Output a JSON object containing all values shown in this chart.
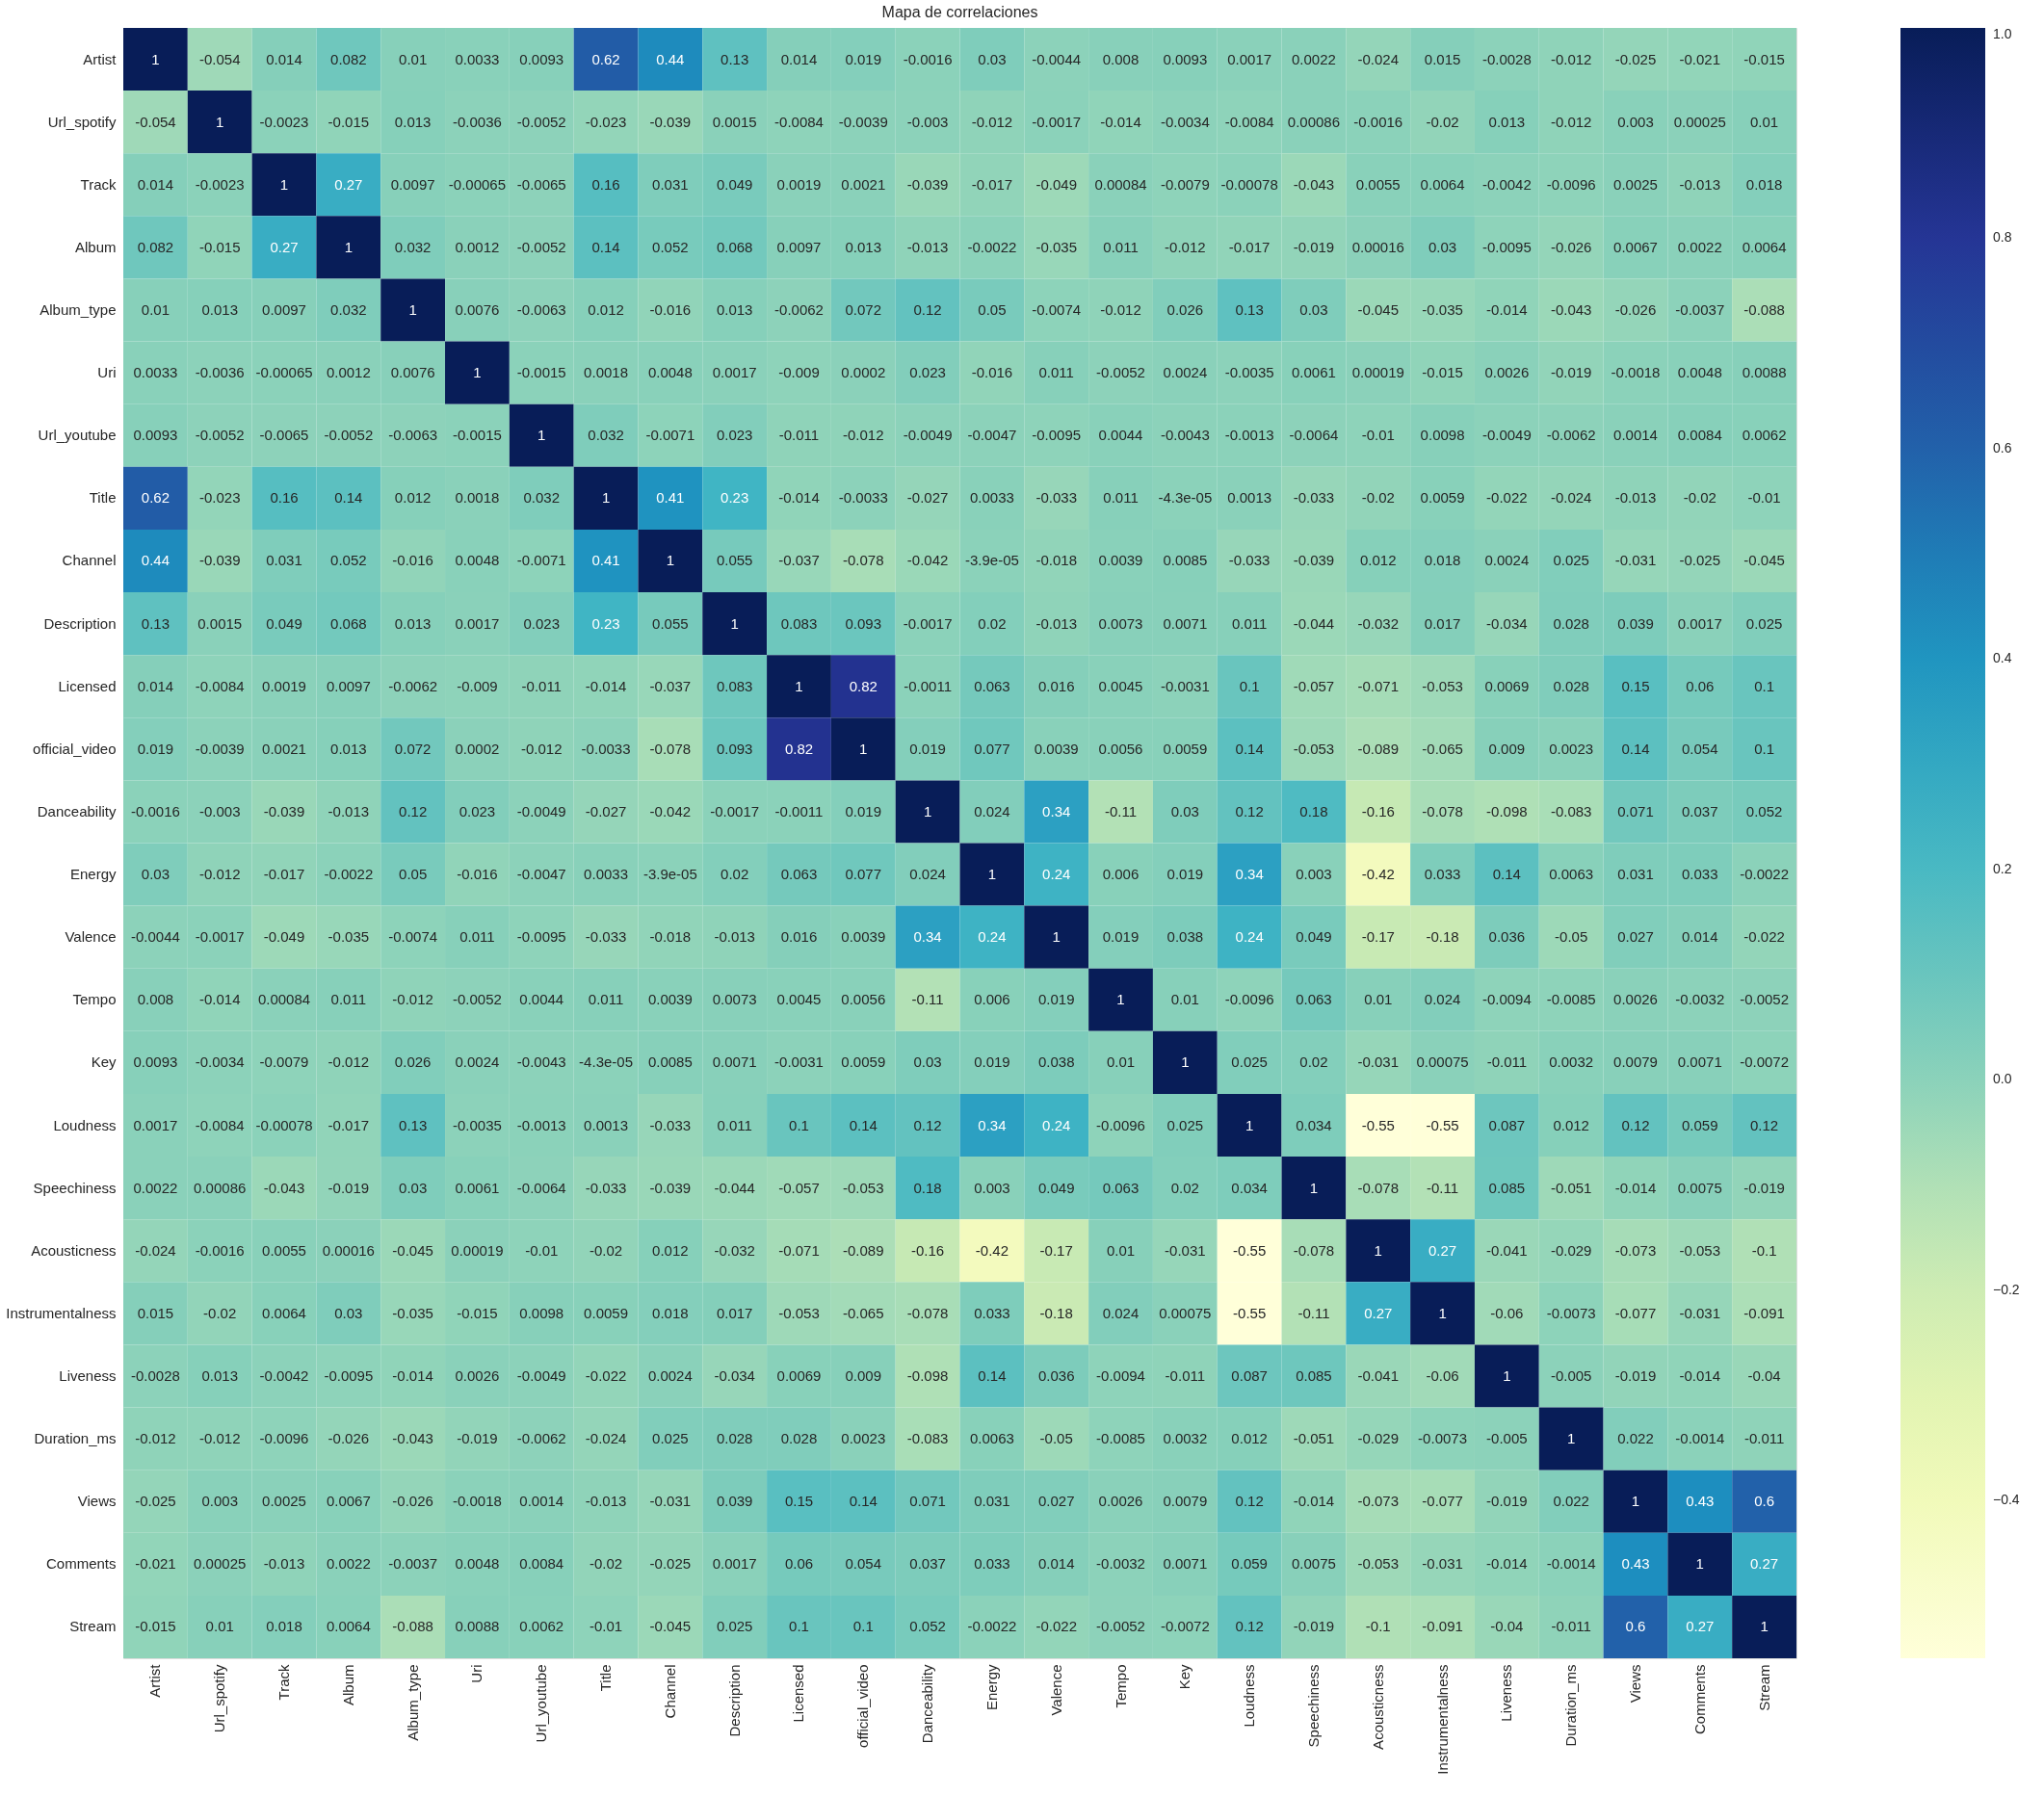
{
  "chart_data": {
    "type": "heatmap",
    "title": "Mapa de correlaciones",
    "categories": [
      "Artist",
      "Url_spotify",
      "Track",
      "Album",
      "Album_type",
      "Uri",
      "Url_youtube",
      "Title",
      "Channel",
      "Description",
      "Licensed",
      "official_video",
      "Danceability",
      "Energy",
      "Valence",
      "Tempo",
      "Key",
      "Loudness",
      "Speechiness",
      "Acousticness",
      "Instrumentalness",
      "Liveness",
      "Duration_ms",
      "Views",
      "Comments",
      "Stream"
    ],
    "y_categories": [
      "Artist",
      "Url_spotify",
      "Track",
      "Album",
      "Album_type",
      "Uri",
      "Url_youtube",
      "Title",
      "Channel",
      "Description",
      "Licensed",
      "official_video",
      "Danceability",
      "Energy",
      "Valence",
      "Tempo",
      "Key",
      "Loudness",
      "Speechiness",
      "Acousticness",
      "Instrumentalness",
      "Liveness",
      "Duration_ms",
      "Views",
      "Comments",
      "Stream"
    ],
    "cells": [
      [
        1,
        -0.054,
        0.014,
        0.082,
        0.01,
        0.0033,
        0.0093,
        0.62,
        0.44,
        0.13,
        0.014,
        0.019,
        -0.0016,
        0.03,
        -0.0044,
        0.008,
        0.0093,
        0.0017,
        0.0022,
        -0.024,
        0.015,
        -0.0028,
        -0.012,
        -0.025,
        -0.021,
        -0.015
      ],
      [
        -0.054,
        1,
        -0.0023,
        -0.015,
        0.013,
        -0.0036,
        -0.0052,
        -0.023,
        -0.039,
        0.0015,
        -0.0084,
        -0.0039,
        -0.003,
        -0.012,
        -0.0017,
        -0.014,
        -0.0034,
        -0.0084,
        0.00086,
        -0.0016,
        -0.02,
        0.013,
        -0.012,
        0.003,
        0.00025,
        0.01
      ],
      [
        0.014,
        -0.0023,
        1,
        0.27,
        0.0097,
        -0.00065,
        -0.0065,
        0.16,
        0.031,
        0.049,
        0.0019,
        0.0021,
        -0.039,
        -0.017,
        -0.049,
        0.00084,
        -0.0079,
        -0.00078,
        -0.043,
        0.0055,
        0.0064,
        -0.0042,
        -0.0096,
        0.0025,
        -0.013,
        0.018
      ],
      [
        0.082,
        -0.015,
        0.27,
        1,
        0.032,
        0.0012,
        -0.0052,
        0.14,
        0.052,
        0.068,
        0.0097,
        0.013,
        -0.013,
        -0.0022,
        -0.035,
        0.011,
        -0.012,
        -0.017,
        -0.019,
        0.00016,
        0.03,
        -0.0095,
        -0.026,
        0.0067,
        0.0022,
        0.0064
      ],
      [
        0.01,
        0.013,
        0.0097,
        0.032,
        1,
        0.0076,
        -0.0063,
        0.012,
        -0.016,
        0.013,
        -0.0062,
        0.072,
        0.12,
        0.05,
        -0.0074,
        -0.012,
        0.026,
        0.13,
        0.03,
        -0.045,
        -0.035,
        -0.014,
        -0.043,
        -0.026,
        -0.0037,
        -0.088
      ],
      [
        0.0033,
        -0.0036,
        -0.00065,
        0.0012,
        0.0076,
        1,
        -0.0015,
        0.0018,
        0.0048,
        0.0017,
        -0.009,
        0.0002,
        0.023,
        -0.016,
        0.011,
        -0.0052,
        0.0024,
        -0.0035,
        0.0061,
        0.00019,
        -0.015,
        0.0026,
        -0.019,
        -0.0018,
        0.0048,
        0.0088
      ],
      [
        0.0093,
        -0.0052,
        -0.0065,
        -0.0052,
        -0.0063,
        -0.0015,
        1,
        0.032,
        -0.0071,
        0.023,
        -0.011,
        -0.012,
        -0.0049,
        -0.0047,
        -0.0095,
        0.0044,
        -0.0043,
        -0.0013,
        -0.0064,
        -0.01,
        0.0098,
        -0.0049,
        -0.0062,
        0.0014,
        0.0084,
        0.0062
      ],
      [
        0.62,
        -0.023,
        0.16,
        0.14,
        0.012,
        0.0018,
        0.032,
        1,
        0.41,
        0.23,
        -0.014,
        -0.0033,
        -0.027,
        0.0033,
        -0.033,
        0.011,
        -4.3e-05,
        0.0013,
        -0.033,
        -0.02,
        0.0059,
        -0.022,
        -0.024,
        -0.013,
        -0.02,
        -0.01
      ],
      [
        0.44,
        -0.039,
        0.031,
        0.052,
        -0.016,
        0.0048,
        -0.0071,
        0.41,
        1,
        0.055,
        -0.037,
        -0.078,
        -0.042,
        -3.9e-05,
        -0.018,
        0.0039,
        0.0085,
        -0.033,
        -0.039,
        0.012,
        0.018,
        0.0024,
        0.025,
        -0.031,
        -0.025,
        -0.045
      ],
      [
        0.13,
        0.0015,
        0.049,
        0.068,
        0.013,
        0.0017,
        0.023,
        0.23,
        0.055,
        1,
        0.083,
        0.093,
        -0.0017,
        0.02,
        -0.013,
        0.0073,
        0.0071,
        0.011,
        -0.044,
        -0.032,
        0.017,
        -0.034,
        0.028,
        0.039,
        0.0017,
        0.025
      ],
      [
        0.014,
        -0.0084,
        0.0019,
        0.0097,
        -0.0062,
        -0.009,
        -0.011,
        -0.014,
        -0.037,
        0.083,
        1,
        0.82,
        -0.0011,
        0.063,
        0.016,
        0.0045,
        -0.0031,
        0.1,
        -0.057,
        -0.071,
        -0.053,
        0.0069,
        0.028,
        0.15,
        0.06,
        0.1
      ],
      [
        0.019,
        -0.0039,
        0.0021,
        0.013,
        0.072,
        0.0002,
        -0.012,
        -0.0033,
        -0.078,
        0.093,
        0.82,
        1,
        0.019,
        0.077,
        0.0039,
        0.0056,
        0.0059,
        0.14,
        -0.053,
        -0.089,
        -0.065,
        0.009,
        0.0023,
        0.14,
        0.054,
        0.1
      ],
      [
        -0.0016,
        -0.003,
        -0.039,
        -0.013,
        0.12,
        0.023,
        -0.0049,
        -0.027,
        -0.042,
        -0.0017,
        -0.0011,
        0.019,
        1,
        0.024,
        0.34,
        -0.11,
        0.03,
        0.12,
        0.18,
        -0.16,
        -0.078,
        -0.098,
        -0.083,
        0.071,
        0.037,
        0.052
      ],
      [
        0.03,
        -0.012,
        -0.017,
        -0.0022,
        0.05,
        -0.016,
        -0.0047,
        0.0033,
        -3.9e-05,
        0.02,
        0.063,
        0.077,
        0.024,
        1,
        0.24,
        0.006,
        0.019,
        0.34,
        0.003,
        -0.42,
        0.033,
        0.14,
        0.0063,
        0.031,
        0.033,
        -0.0022
      ],
      [
        -0.0044,
        -0.0017,
        -0.049,
        -0.035,
        -0.0074,
        0.011,
        -0.0095,
        -0.033,
        -0.018,
        -0.013,
        0.016,
        0.0039,
        0.34,
        0.24,
        1,
        0.019,
        0.038,
        0.24,
        0.049,
        -0.17,
        -0.18,
        0.036,
        -0.05,
        0.027,
        0.014,
        -0.022
      ],
      [
        0.008,
        -0.014,
        0.00084,
        0.011,
        -0.012,
        -0.0052,
        0.0044,
        0.011,
        0.0039,
        0.0073,
        0.0045,
        0.0056,
        -0.11,
        0.006,
        0.019,
        1,
        0.01,
        -0.0096,
        0.063,
        0.01,
        0.024,
        -0.0094,
        -0.0085,
        0.0026,
        -0.0032,
        -0.0052
      ],
      [
        0.0093,
        -0.0034,
        -0.0079,
        -0.012,
        0.026,
        0.0024,
        -0.0043,
        -4.3e-05,
        0.0085,
        0.0071,
        -0.0031,
        0.0059,
        0.03,
        0.019,
        0.038,
        0.01,
        1,
        0.025,
        0.02,
        -0.031,
        0.00075,
        -0.011,
        0.0032,
        0.0079,
        0.0071,
        -0.0072
      ],
      [
        0.0017,
        -0.0084,
        -0.00078,
        -0.017,
        0.13,
        -0.0035,
        -0.0013,
        0.0013,
        -0.033,
        0.011,
        0.1,
        0.14,
        0.12,
        0.34,
        0.24,
        -0.0096,
        0.025,
        1,
        0.034,
        -0.55,
        -0.55,
        0.087,
        0.012,
        0.12,
        0.059,
        0.12
      ],
      [
        0.0022,
        0.00086,
        -0.043,
        -0.019,
        0.03,
        0.0061,
        -0.0064,
        -0.033,
        -0.039,
        -0.044,
        -0.057,
        -0.053,
        0.18,
        0.003,
        0.049,
        0.063,
        0.02,
        0.034,
        1,
        -0.078,
        -0.11,
        0.085,
        -0.051,
        -0.014,
        0.0075,
        -0.019
      ],
      [
        -0.024,
        -0.0016,
        0.0055,
        0.00016,
        -0.045,
        0.00019,
        -0.01,
        -0.02,
        0.012,
        -0.032,
        -0.071,
        -0.089,
        -0.16,
        -0.42,
        -0.17,
        0.01,
        -0.031,
        -0.55,
        -0.078,
        1,
        0.27,
        -0.041,
        -0.029,
        -0.073,
        -0.053,
        -0.1
      ],
      [
        0.015,
        -0.02,
        0.0064,
        0.03,
        -0.035,
        -0.015,
        0.0098,
        0.0059,
        0.018,
        0.017,
        -0.053,
        -0.065,
        -0.078,
        0.033,
        -0.18,
        0.024,
        0.00075,
        -0.55,
        -0.11,
        0.27,
        1,
        -0.06,
        -0.0073,
        -0.077,
        -0.031,
        -0.091
      ],
      [
        -0.0028,
        0.013,
        -0.0042,
        -0.0095,
        -0.014,
        0.0026,
        -0.0049,
        -0.022,
        0.0024,
        -0.034,
        0.0069,
        0.009,
        -0.098,
        0.14,
        0.036,
        -0.0094,
        -0.011,
        0.087,
        0.085,
        -0.041,
        -0.06,
        1,
        -0.005,
        -0.019,
        -0.014,
        -0.04
      ],
      [
        -0.012,
        -0.012,
        -0.0096,
        -0.026,
        -0.043,
        -0.019,
        -0.0062,
        -0.024,
        0.025,
        0.028,
        0.028,
        0.0023,
        -0.083,
        0.0063,
        -0.05,
        -0.0085,
        0.0032,
        0.012,
        -0.051,
        -0.029,
        -0.0073,
        -0.005,
        1,
        0.022,
        -0.0014,
        -0.011
      ],
      [
        -0.025,
        0.003,
        0.0025,
        0.0067,
        -0.026,
        -0.0018,
        0.0014,
        -0.013,
        -0.031,
        0.039,
        0.15,
        0.14,
        0.071,
        0.031,
        0.027,
        0.0026,
        0.0079,
        0.12,
        -0.014,
        -0.073,
        -0.077,
        -0.019,
        0.022,
        1,
        0.43,
        0.6
      ],
      [
        -0.021,
        0.00025,
        -0.013,
        0.0022,
        -0.0037,
        0.0048,
        0.0084,
        -0.02,
        -0.025,
        0.0017,
        0.06,
        0.054,
        0.037,
        0.033,
        0.014,
        -0.0032,
        0.0071,
        0.059,
        0.0075,
        -0.053,
        -0.031,
        -0.014,
        -0.0014,
        0.43,
        1,
        0.27
      ],
      [
        -0.015,
        0.01,
        0.018,
        0.0064,
        -0.088,
        0.0088,
        0.0062,
        -0.01,
        -0.045,
        0.025,
        0.1,
        0.1,
        0.052,
        -0.0022,
        -0.022,
        -0.0052,
        -0.0072,
        0.12,
        -0.019,
        -0.1,
        -0.091,
        -0.04,
        -0.011,
        0.6,
        0.27,
        1
      ]
    ],
    "clim": [
      -0.55,
      1
    ],
    "cticks": [
      {
        "value": -0.4,
        "label": "−0.4"
      },
      {
        "value": -0.2,
        "label": "−0.2"
      },
      {
        "value": 0.0,
        "label": "0.0"
      },
      0.2,
      0.4,
      0.6,
      0.8,
      {
        "value": 1.0,
        "label": "1.0"
      }
    ],
    "data_labels": true
  }
}
